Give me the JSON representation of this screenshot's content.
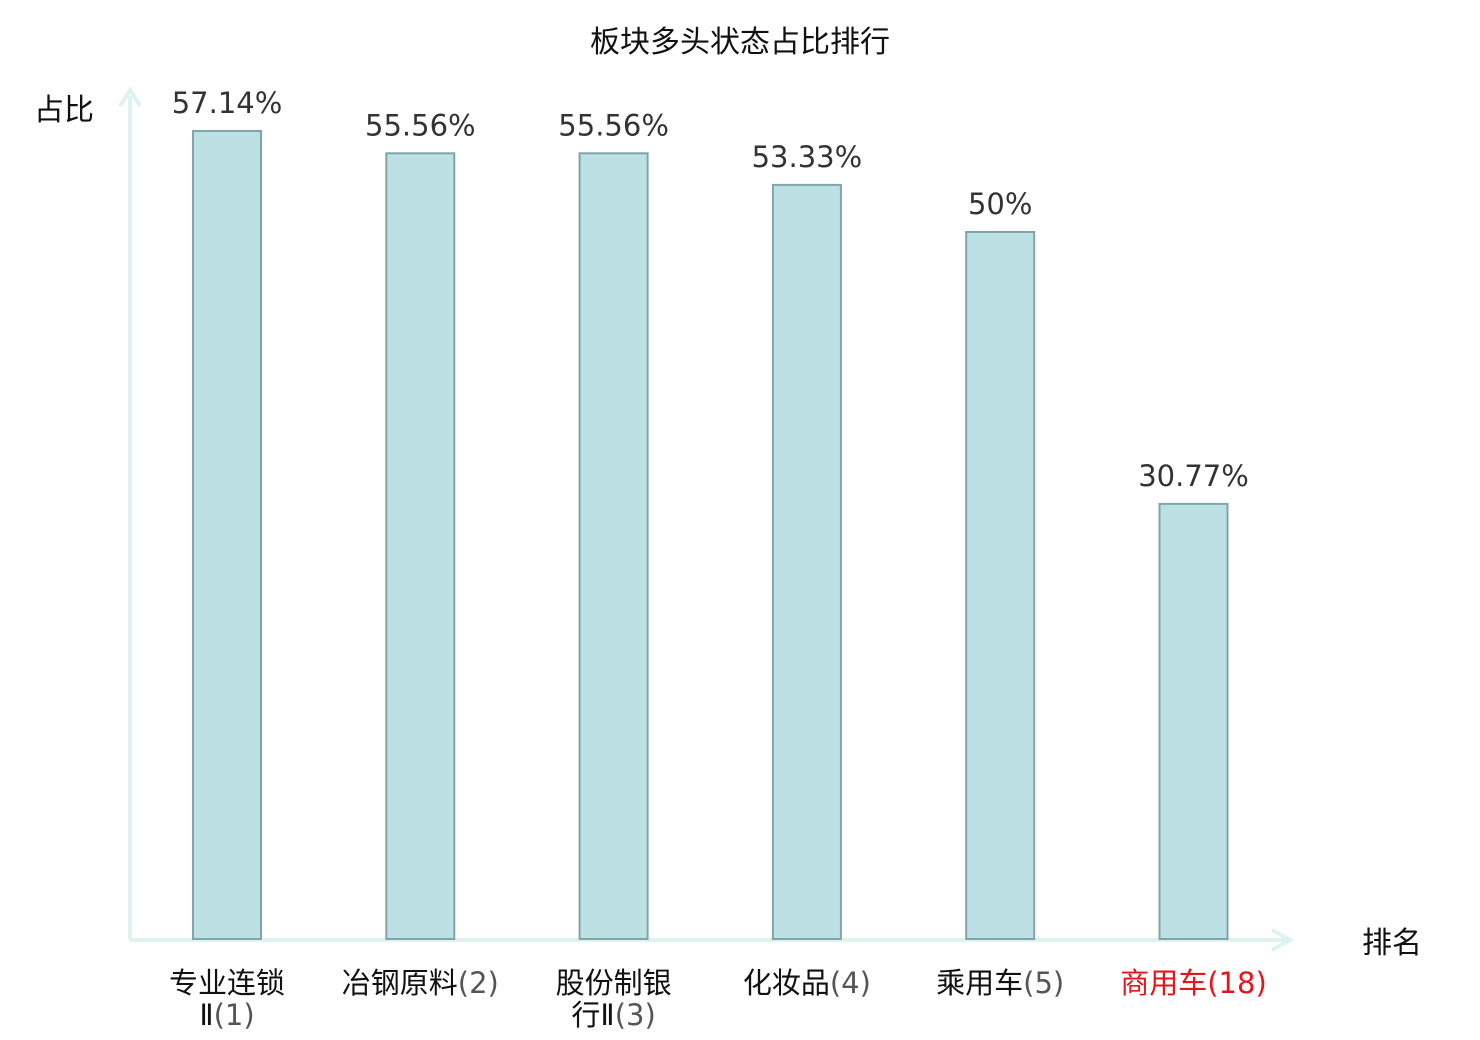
{
  "chart_data": {
    "type": "bar",
    "title": "板块多头状态占比排行",
    "xlabel": "排名",
    "ylabel": "占比",
    "categories": [
      {
        "name": "专业连锁",
        "name2": "Ⅱ",
        "rank": "(1)",
        "highlight": false
      },
      {
        "name": "冶钢原料",
        "name2": "",
        "rank": "(2)",
        "highlight": false
      },
      {
        "name": "股份制银",
        "name2": "行Ⅱ",
        "rank": "(3)",
        "highlight": false
      },
      {
        "name": "化妆品",
        "name2": "",
        "rank": "(4)",
        "highlight": false
      },
      {
        "name": "乘用车",
        "name2": "",
        "rank": "(5)",
        "highlight": false
      },
      {
        "name": "商用车",
        "name2": "",
        "rank": "(18)",
        "highlight": true
      }
    ],
    "values": [
      57.14,
      55.56,
      55.56,
      53.33,
      50,
      30.77
    ],
    "value_labels": [
      "57.14%",
      "55.56%",
      "55.56%",
      "53.33%",
      "50%",
      "30.77%"
    ],
    "ylim": [
      0,
      57.14
    ],
    "grid": false,
    "legend": "none",
    "colors": {
      "bar_fill": "#bce0e3",
      "bar_stroke": "#7fa5a8",
      "axis": "#dff2ef",
      "highlight_text": "#e8141b",
      "value_text": "#333333",
      "rank_text": "#555555"
    }
  }
}
